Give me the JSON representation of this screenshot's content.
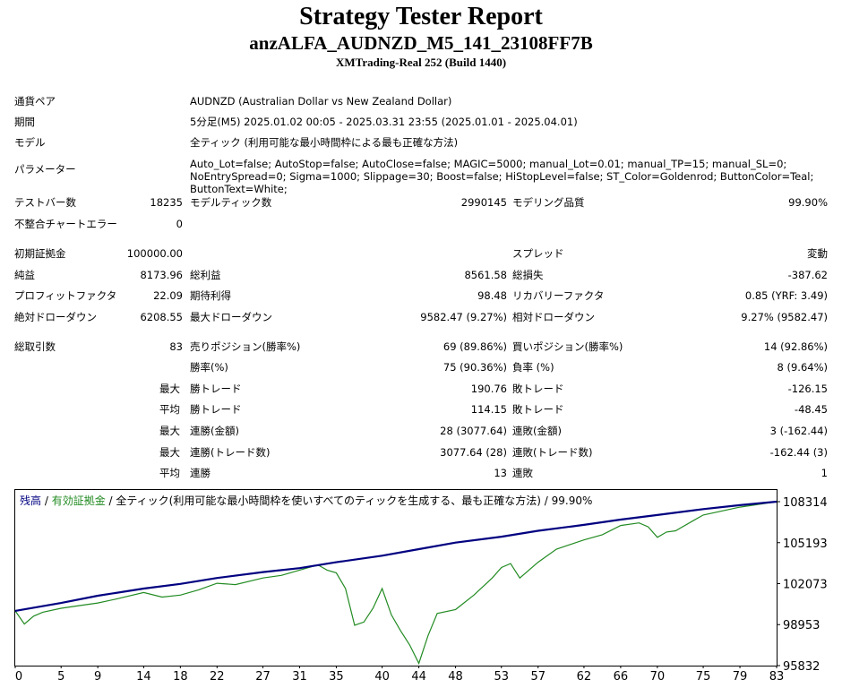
{
  "header": {
    "title": "Strategy Tester Report",
    "subtitle": "anzALFA_AUDNZD_M5_141_23108FF7B",
    "build": "XMTrading-Real 252 (Build 1440)"
  },
  "info": {
    "pair_label": "通貨ペア",
    "pair_value": "AUDNZD (Australian Dollar vs New Zealand Dollar)",
    "period_label": "期間",
    "period_value": "5分足(M5) 2025.01.02 00:05 - 2025.03.31 23:55 (2025.01.01 - 2025.04.01)",
    "model_label": "モデル",
    "model_value": "全ティック (利用可能な最小時間枠による最も正確な方法)",
    "params_label": "パラメーター",
    "params_value": "Auto_Lot=false; AutoStop=false; AutoClose=false; MAGIC=5000; manual_Lot=0.01; manual_TP=15; manual_SL=0; NoEntrySpread=0; Sigma=1000; Slippage=30; Boost=false; HiStopLevel=false; ST_Color=Goldenrod; ButtonColor=Teal; ButtonText=White;"
  },
  "stats": {
    "test_bars_label": "テストバー数",
    "test_bars": "18235",
    "model_ticks_label": "モデルティック数",
    "model_ticks": "2990145",
    "modeling_quality_label": "モデリング品質",
    "modeling_quality": "99.90%",
    "mismatch_label": "不整合チャートエラー",
    "mismatch": "0",
    "initial_deposit_label": "初期証拠金",
    "initial_deposit": "100000.00",
    "spread_label": "スプレッド",
    "spread": "変動",
    "net_profit_label": "純益",
    "net_profit": "8173.96",
    "gross_profit_label": "総利益",
    "gross_profit": "8561.58",
    "gross_loss_label": "総損失",
    "gross_loss": "-387.62",
    "profit_factor_label": "プロフィットファクタ",
    "profit_factor": "22.09",
    "expected_payoff_label": "期待利得",
    "expected_payoff": "98.48",
    "recovery_factor_label": "リカバリーファクタ",
    "recovery_factor": "0.85 (YRF: 3.49)",
    "abs_dd_label": "絶対ドローダウン",
    "abs_dd": "6208.55",
    "max_dd_label": "最大ドローダウン",
    "max_dd": "9582.47 (9.27%)",
    "rel_dd_label": "相対ドローダウン",
    "rel_dd": "9.27% (9582.47)",
    "total_trades_label": "総取引数",
    "total_trades": "83",
    "short_label": "売りポジション(勝率%)",
    "short": "69 (89.86%)",
    "long_label": "買いポジション(勝率%)",
    "long": "14 (92.86%)",
    "win_rate_label": "勝率(%)",
    "win_rate": "75 (90.36%)",
    "loss_rate_label": "負率 (%)",
    "loss_rate": "8 (9.64%)",
    "largest_label": "最大",
    "largest_win_label": "勝トレード",
    "largest_win": "190.76",
    "largest_loss_label": "敗トレード",
    "largest_loss": "-126.15",
    "average_label": "平均",
    "avg_win_label": "勝トレード",
    "avg_win": "114.15",
    "avg_loss_label": "敗トレード",
    "avg_loss": "-48.45",
    "max_label_1": "最大",
    "max_consec_wins_money_label": "連勝(金額)",
    "max_consec_wins_money": "28 (3077.64)",
    "max_consec_losses_money_label": "連敗(金額)",
    "max_consec_losses_money": "3 (-162.44)",
    "max_label_2": "最大",
    "max_consec_profit_label": "連勝(トレード数)",
    "max_consec_profit": "3077.64 (28)",
    "max_consec_loss_label": "連敗(トレード数)",
    "max_consec_loss": "-162.44 (3)",
    "avg_label_2": "平均",
    "avg_consec_wins_label": "連勝",
    "avg_consec_wins": "13",
    "avg_consec_losses_label": "連敗",
    "avg_consec_losses": "1"
  },
  "legend": {
    "balance": "残高",
    "sep1": " / ",
    "equity": "有効証拠金",
    "rest": " / 全ティック(利用可能な最小時間枠を使いすべてのティックを生成する、最も正確な方法) / 99.90%"
  },
  "colors": {
    "balance": "#000080",
    "equity": "#228b22"
  },
  "chart_data": {
    "type": "line",
    "title": "",
    "xlabel": "",
    "ylabel": "",
    "x_ticks": [
      "0",
      "5",
      "9",
      "14",
      "18",
      "22",
      "27",
      "31",
      "35",
      "40",
      "44",
      "48",
      "53",
      "57",
      "62",
      "66",
      "70",
      "75",
      "79",
      "83"
    ],
    "y_ticks": [
      "108314",
      "105193",
      "102073",
      "98953",
      "95832"
    ],
    "xlim": [
      0,
      83
    ],
    "ylim": [
      95832,
      108314
    ],
    "series": [
      {
        "name": "残高",
        "x": [
          0,
          5,
          9,
          14,
          18,
          22,
          27,
          31,
          35,
          40,
          44,
          48,
          53,
          57,
          62,
          66,
          70,
          75,
          79,
          83
        ],
        "y": [
          100000,
          100600,
          101150,
          101700,
          102050,
          102500,
          102950,
          103250,
          103700,
          104200,
          104700,
          105200,
          105650,
          106100,
          106550,
          106950,
          107300,
          107750,
          108050,
          108314
        ]
      },
      {
        "name": "有効証拠金",
        "x": [
          0,
          1,
          2,
          3,
          5,
          7,
          9,
          11,
          14,
          16,
          18,
          20,
          22,
          24,
          27,
          29,
          31,
          33,
          34,
          35,
          36,
          37,
          38,
          39,
          40,
          41,
          42,
          43,
          44,
          45,
          46,
          48,
          50,
          52,
          53,
          54,
          55,
          57,
          59,
          62,
          64,
          66,
          68,
          69,
          70,
          71,
          72,
          74,
          75,
          79,
          83
        ],
        "y": [
          100000,
          99000,
          99600,
          99900,
          100200,
          100400,
          100600,
          100900,
          101400,
          101050,
          101200,
          101600,
          102100,
          102000,
          102500,
          102700,
          103100,
          103500,
          103100,
          102900,
          101700,
          98900,
          99150,
          100200,
          101700,
          99700,
          98500,
          97400,
          96000,
          98100,
          99800,
          100100,
          101200,
          102500,
          103300,
          103600,
          102500,
          103700,
          104700,
          105400,
          105800,
          106500,
          106700,
          106400,
          105600,
          106000,
          106100,
          106900,
          107300,
          107900,
          108314
        ]
      }
    ]
  }
}
